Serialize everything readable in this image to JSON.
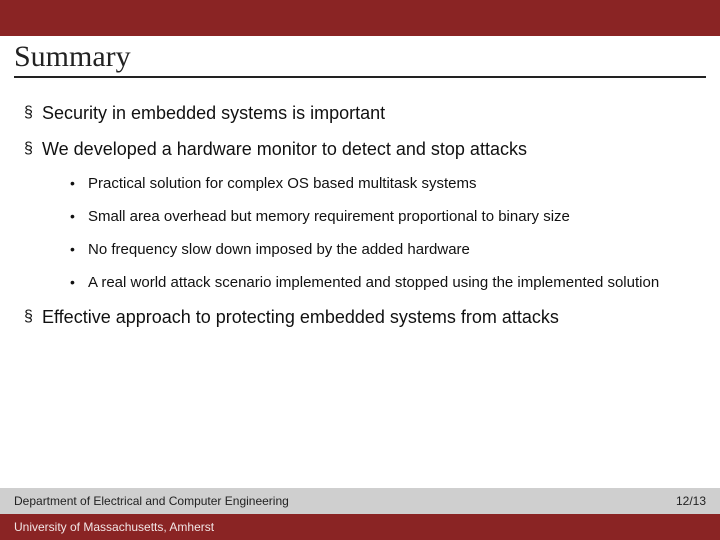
{
  "colors": {
    "brand": "#8a2424",
    "grey_band": "#cfcfcf",
    "text": "#111111",
    "rule": "#222222"
  },
  "title": "Summary",
  "bullet_marker_l1": "§",
  "bullet_marker_l2": "•",
  "bullets": {
    "b1": "Security in embedded systems is important",
    "b2": "We developed a hardware monitor to detect and stop attacks",
    "b2_sub": {
      "s1": "Practical solution for complex OS based multitask systems",
      "s2": "Small area overhead but memory requirement proportional to binary size",
      "s3": "No frequency slow down imposed by the added hardware",
      "s4": "A real world attack scenario implemented and stopped using the implemented solution"
    },
    "b3": "Effective approach to protecting embedded systems from attacks"
  },
  "footer": {
    "dept": "Department of Electrical and Computer Engineering",
    "page": "12/13",
    "university": "University of Massachusetts, Amherst"
  }
}
